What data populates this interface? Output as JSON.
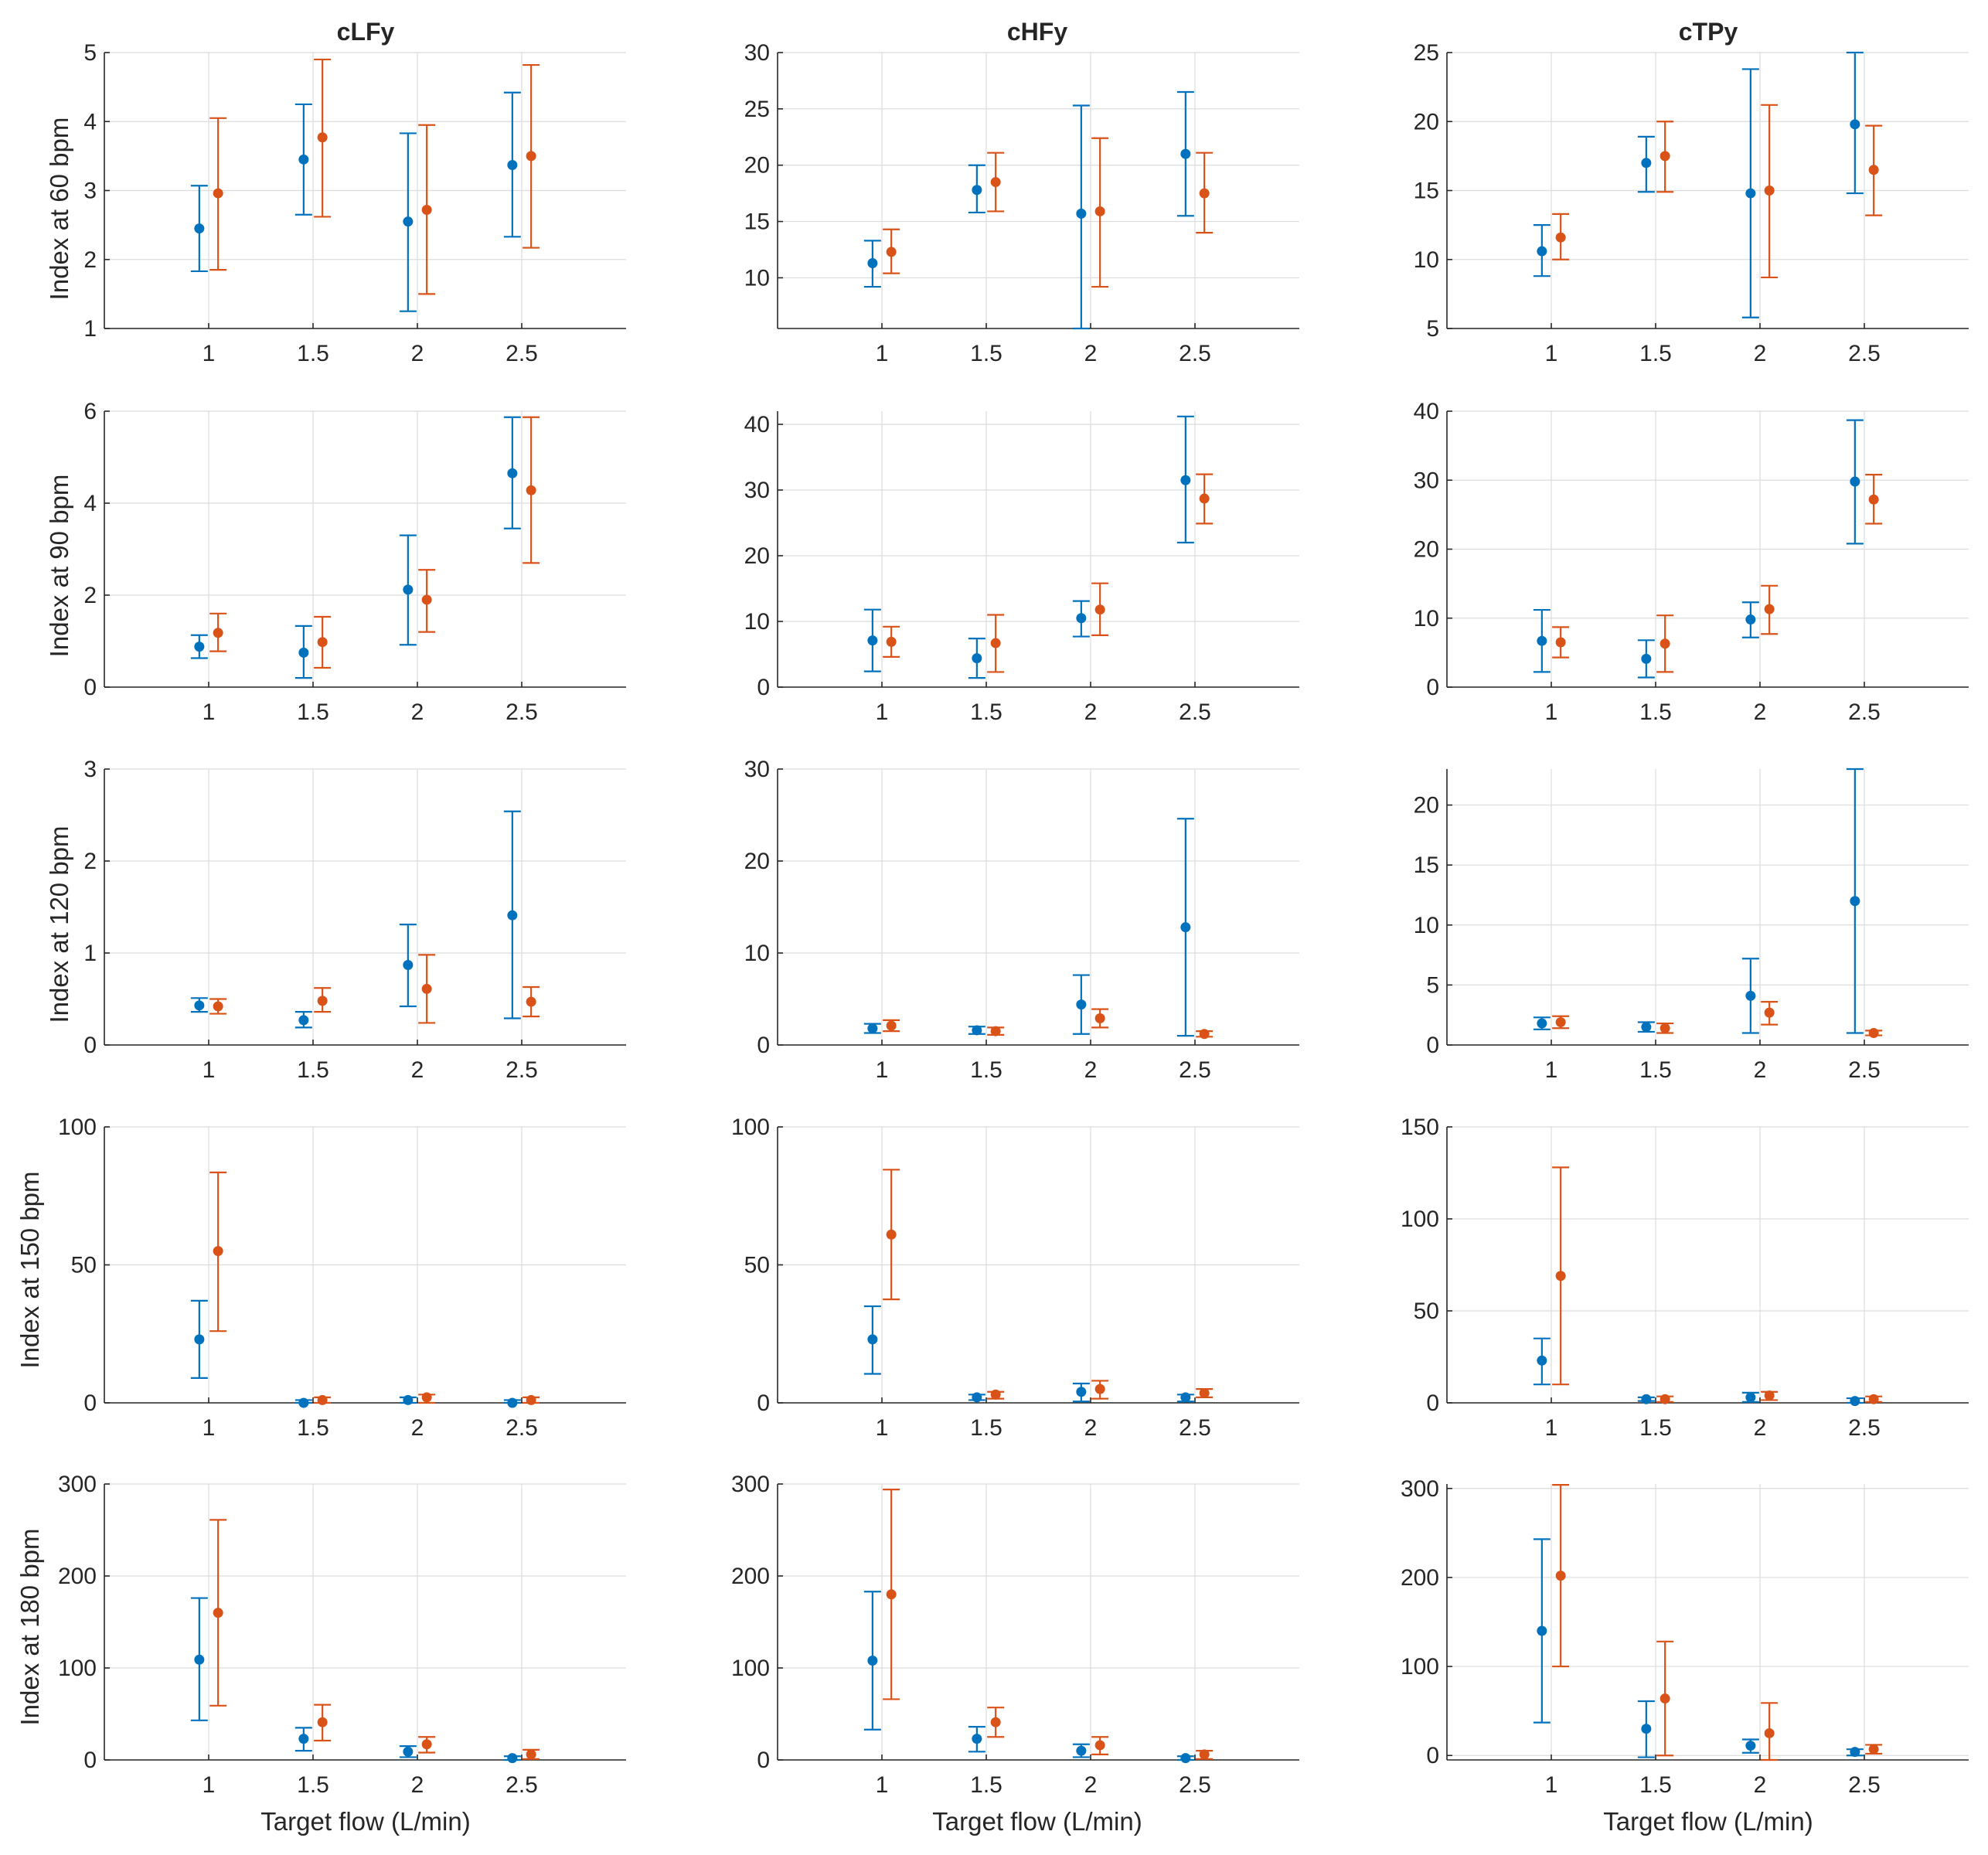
{
  "colors": {
    "series1": "#0072BD",
    "series2": "#D95319",
    "axis": "#262626",
    "grid": "#dcdcdc"
  },
  "chart_data": {
    "type": "scatter",
    "variant": "error-bar grid (5 rows x 3 columns)",
    "column_titles": [
      "cLFy",
      "cHFy",
      "cTPy"
    ],
    "row_labels": [
      "Index at 60 bpm",
      "Index at 90 bpm",
      "Index at 120 bpm",
      "Index at 150 bpm",
      "Index at 180 bpm"
    ],
    "xlabel": "Target flow (L/min)",
    "x_categories": [
      "1",
      "1.5",
      "2",
      "2.5"
    ],
    "x_values": [
      1,
      1.5,
      2,
      2.5
    ],
    "xlim": [
      0.5,
      3.0
    ],
    "series_names": [
      "series 1 (blue)",
      "series 2 (orange)"
    ],
    "panels": [
      [
        {
          "ylim": [
            1,
            5
          ],
          "yticks": [
            1,
            2,
            3,
            4,
            5
          ],
          "series": [
            {
              "means": [
                2.45,
                3.45,
                2.55,
                3.37
              ],
              "lows": [
                1.83,
                2.65,
                1.25,
                2.33
              ],
              "highs": [
                3.07,
                4.25,
                3.83,
                4.42
              ]
            },
            {
              "means": [
                2.96,
                3.77,
                2.72,
                3.5
              ],
              "lows": [
                1.85,
                2.62,
                1.5,
                2.17
              ],
              "highs": [
                4.05,
                4.9,
                3.95,
                4.82
              ]
            }
          ]
        },
        {
          "ylim": [
            5.5,
            30
          ],
          "yticks": [
            10,
            15,
            20,
            25,
            30
          ],
          "series": [
            {
              "means": [
                11.3,
                17.8,
                15.7,
                21
              ],
              "lows": [
                9.2,
                15.8,
                5.5,
                15.5
              ],
              "highs": [
                13.3,
                20,
                25.3,
                26.5
              ]
            },
            {
              "means": [
                12.3,
                18.5,
                15.9,
                17.5
              ],
              "lows": [
                10.4,
                15.9,
                9.2,
                14
              ],
              "highs": [
                14.3,
                21.1,
                22.4,
                21.1
              ]
            }
          ]
        },
        {
          "ylim": [
            5,
            25
          ],
          "yticks": [
            5,
            10,
            15,
            20,
            25
          ],
          "series": [
            {
              "means": [
                10.6,
                17,
                14.8,
                19.8
              ],
              "lows": [
                8.8,
                14.9,
                5.8,
                14.8
              ],
              "highs": [
                12.5,
                18.9,
                23.8,
                25
              ]
            },
            {
              "means": [
                11.6,
                17.5,
                15,
                16.5
              ],
              "lows": [
                10,
                14.9,
                8.7,
                13.2
              ],
              "highs": [
                13.3,
                20,
                21.2,
                19.7
              ]
            }
          ]
        }
      ],
      [
        {
          "ylim": [
            0,
            6
          ],
          "yticks": [
            0,
            2,
            4,
            6
          ],
          "series": [
            {
              "means": [
                0.88,
                0.75,
                2.12,
                4.65
              ],
              "lows": [
                0.63,
                0.2,
                0.92,
                3.45
              ],
              "highs": [
                1.13,
                1.33,
                3.3,
                5.87
              ]
            },
            {
              "means": [
                1.18,
                0.98,
                1.9,
                4.28
              ],
              "lows": [
                0.78,
                0.42,
                1.2,
                2.7
              ],
              "highs": [
                1.6,
                1.53,
                2.55,
                5.87
              ]
            }
          ]
        },
        {
          "ylim": [
            0,
            42
          ],
          "yticks": [
            0,
            10,
            20,
            30,
            40
          ],
          "series": [
            {
              "means": [
                7.1,
                4.4,
                10.5,
                31.5
              ],
              "lows": [
                2.4,
                1.4,
                7.7,
                22
              ],
              "highs": [
                11.8,
                7.4,
                13.1,
                41.2
              ]
            },
            {
              "means": [
                6.9,
                6.7,
                11.8,
                28.7
              ],
              "lows": [
                4.6,
                2.3,
                7.9,
                24.9
              ],
              "highs": [
                9.2,
                11,
                15.8,
                32.4
              ]
            }
          ]
        },
        {
          "ylim": [
            0,
            40
          ],
          "yticks": [
            0,
            10,
            20,
            30,
            40
          ],
          "series": [
            {
              "means": [
                6.7,
                4.1,
                9.8,
                29.8
              ],
              "lows": [
                2.2,
                1.4,
                7.2,
                20.8
              ],
              "highs": [
                11.2,
                6.8,
                12.3,
                38.7
              ]
            },
            {
              "means": [
                6.5,
                6.3,
                11.3,
                27.2
              ],
              "lows": [
                4.3,
                2.2,
                7.7,
                23.7
              ],
              "highs": [
                8.7,
                10.4,
                14.7,
                30.8
              ]
            }
          ]
        }
      ],
      [
        {
          "ylim": [
            0,
            3
          ],
          "yticks": [
            0,
            1,
            2,
            3
          ],
          "series": [
            {
              "means": [
                0.43,
                0.27,
                0.87,
                1.41
              ],
              "lows": [
                0.36,
                0.19,
                0.42,
                0.29
              ],
              "highs": [
                0.51,
                0.36,
                1.31,
                2.54
              ]
            },
            {
              "means": [
                0.42,
                0.48,
                0.61,
                0.47
              ],
              "lows": [
                0.34,
                0.36,
                0.24,
                0.31
              ],
              "highs": [
                0.5,
                0.62,
                0.98,
                0.63
              ]
            }
          ]
        },
        {
          "ylim": [
            0,
            30
          ],
          "yticks": [
            0,
            10,
            20,
            30
          ],
          "series": [
            {
              "means": [
                1.8,
                1.6,
                4.4,
                12.8
              ],
              "lows": [
                1.3,
                1.2,
                1.2,
                1
              ],
              "highs": [
                2.3,
                2,
                7.6,
                24.6
              ]
            },
            {
              "means": [
                2.1,
                1.5,
                2.9,
                1.2
              ],
              "lows": [
                1.5,
                1.1,
                1.9,
                0.9
              ],
              "highs": [
                2.7,
                1.9,
                3.9,
                1.5
              ]
            }
          ]
        },
        {
          "ylim": [
            0,
            23
          ],
          "yticks": [
            0,
            5,
            10,
            15,
            20
          ],
          "series": [
            {
              "means": [
                1.8,
                1.5,
                4.1,
                12
              ],
              "lows": [
                1.3,
                1.1,
                1,
                1
              ],
              "highs": [
                2.3,
                1.9,
                7.2,
                23
              ]
            },
            {
              "means": [
                1.9,
                1.4,
                2.7,
                1
              ],
              "lows": [
                1.4,
                1,
                1.7,
                0.8
              ],
              "highs": [
                2.4,
                1.8,
                3.6,
                1.2
              ]
            }
          ]
        }
      ],
      [
        {
          "ylim": [
            0,
            100
          ],
          "yticks": [
            0,
            50,
            100
          ],
          "series": [
            {
              "means": [
                23,
                0,
                1,
                0
              ],
              "lows": [
                9,
                0,
                0,
                0
              ],
              "highs": [
                37,
                1,
                2,
                1
              ]
            },
            {
              "means": [
                55,
                1,
                2,
                1
              ],
              "lows": [
                26,
                0,
                0,
                0
              ],
              "highs": [
                83.5,
                2,
                3,
                2
              ]
            }
          ]
        },
        {
          "ylim": [
            0,
            100
          ],
          "yticks": [
            0,
            50,
            100
          ],
          "series": [
            {
              "means": [
                23,
                2,
                4,
                2
              ],
              "lows": [
                10.5,
                1,
                0.5,
                0.5
              ],
              "highs": [
                35,
                3,
                7,
                3
              ]
            },
            {
              "means": [
                61,
                3,
                5,
                3.5
              ],
              "lows": [
                37.5,
                1.5,
                1.5,
                2
              ],
              "highs": [
                84.5,
                4,
                8,
                5
              ]
            }
          ]
        },
        {
          "ylim": [
            0,
            150
          ],
          "yticks": [
            0,
            50,
            100,
            150
          ],
          "series": [
            {
              "means": [
                23,
                2,
                3,
                1
              ],
              "lows": [
                10,
                1,
                0.5,
                0
              ],
              "highs": [
                35,
                3,
                5.5,
                2.5
              ]
            },
            {
              "means": [
                69,
                2,
                4,
                2
              ],
              "lows": [
                10,
                0.5,
                1.5,
                0.5
              ],
              "highs": [
                128,
                3.5,
                6,
                3.5
              ]
            }
          ]
        }
      ],
      [
        {
          "ylim": [
            0,
            300
          ],
          "yticks": [
            0,
            100,
            200,
            300
          ],
          "series": [
            {
              "means": [
                109,
                23,
                9,
                2
              ],
              "lows": [
                43,
                10,
                3,
                0
              ],
              "highs": [
                176,
                35,
                15,
                4
              ]
            },
            {
              "means": [
                160,
                41,
                17,
                6
              ],
              "lows": [
                59,
                21,
                8,
                1
              ],
              "highs": [
                261,
                60,
                25,
                11
              ]
            }
          ]
        },
        {
          "ylim": [
            0,
            300
          ],
          "yticks": [
            0,
            100,
            200,
            300
          ],
          "series": [
            {
              "means": [
                108,
                23,
                10,
                2
              ],
              "lows": [
                33,
                9,
                3,
                0
              ],
              "highs": [
                183,
                36,
                17,
                4
              ]
            },
            {
              "means": [
                180,
                41,
                16,
                6
              ],
              "lows": [
                66,
                25,
                6,
                1
              ],
              "highs": [
                294,
                57,
                25,
                10
              ]
            }
          ]
        },
        {
          "ylim": [
            -5,
            305
          ],
          "yticks": [
            0,
            100,
            200,
            300
          ],
          "series": [
            {
              "means": [
                140,
                30,
                11,
                4
              ],
              "lows": [
                37,
                -2,
                3,
                0
              ],
              "highs": [
                243,
                61,
                18,
                7
              ]
            },
            {
              "means": [
                202,
                64,
                25,
                7
              ],
              "lows": [
                100,
                0,
                -5,
                2
              ],
              "highs": [
                304,
                128,
                59,
                12
              ]
            }
          ]
        }
      ]
    ]
  }
}
